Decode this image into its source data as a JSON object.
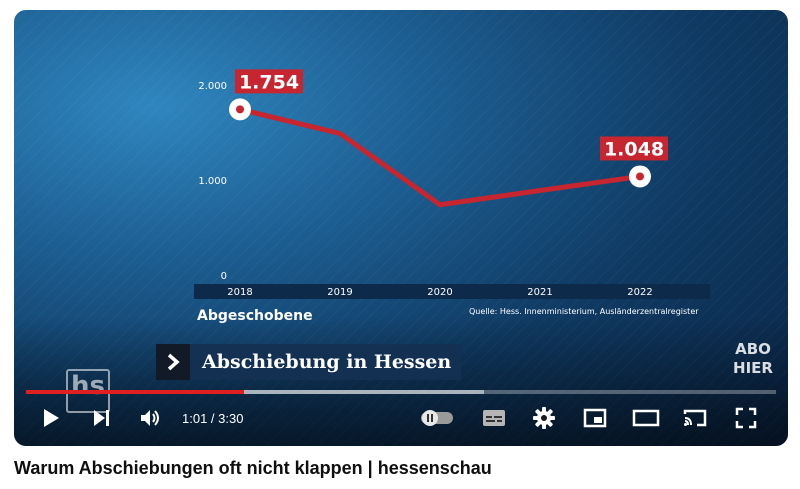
{
  "video": {
    "title": "Warum Abschiebungen oft nicht klappen | hessenschau",
    "lower_third": "Abschiebung in Hessen",
    "channel_logo": "hs",
    "abo_line1": "ABO",
    "abo_line2": "HIER"
  },
  "player": {
    "time_display": "1:01 / 3:30",
    "progress_played": 0.29,
    "progress_buffered": 0.61,
    "accent_color": "#e02020",
    "icons": [
      "play-icon",
      "next-icon",
      "volume-icon",
      "autoplay-toggle-icon",
      "subtitles-icon",
      "settings-gear-icon",
      "miniplayer-icon",
      "theater-mode-icon",
      "cast-icon",
      "fullscreen-icon"
    ]
  },
  "chart_data": {
    "type": "line",
    "x": [
      "2018",
      "2019",
      "2020",
      "2021",
      "2022"
    ],
    "series": [
      {
        "name": "Abgeschobene",
        "values": [
          1754,
          1500,
          750,
          900,
          1048
        ],
        "color": "#c7252f"
      }
    ],
    "yticks": [
      "2.000",
      "1.000",
      "0"
    ],
    "ytick_values": [
      2000,
      1000,
      0
    ],
    "ylim": [
      0,
      2000
    ],
    "data_labels": [
      {
        "index": 0,
        "text": "1.754"
      },
      {
        "index": 4,
        "text": "1.048"
      }
    ],
    "subject_label": "Abgeschobene",
    "source": "Quelle: Hess. Innenministerium, Ausländerzentralregister",
    "label_color": "#c7252f"
  }
}
